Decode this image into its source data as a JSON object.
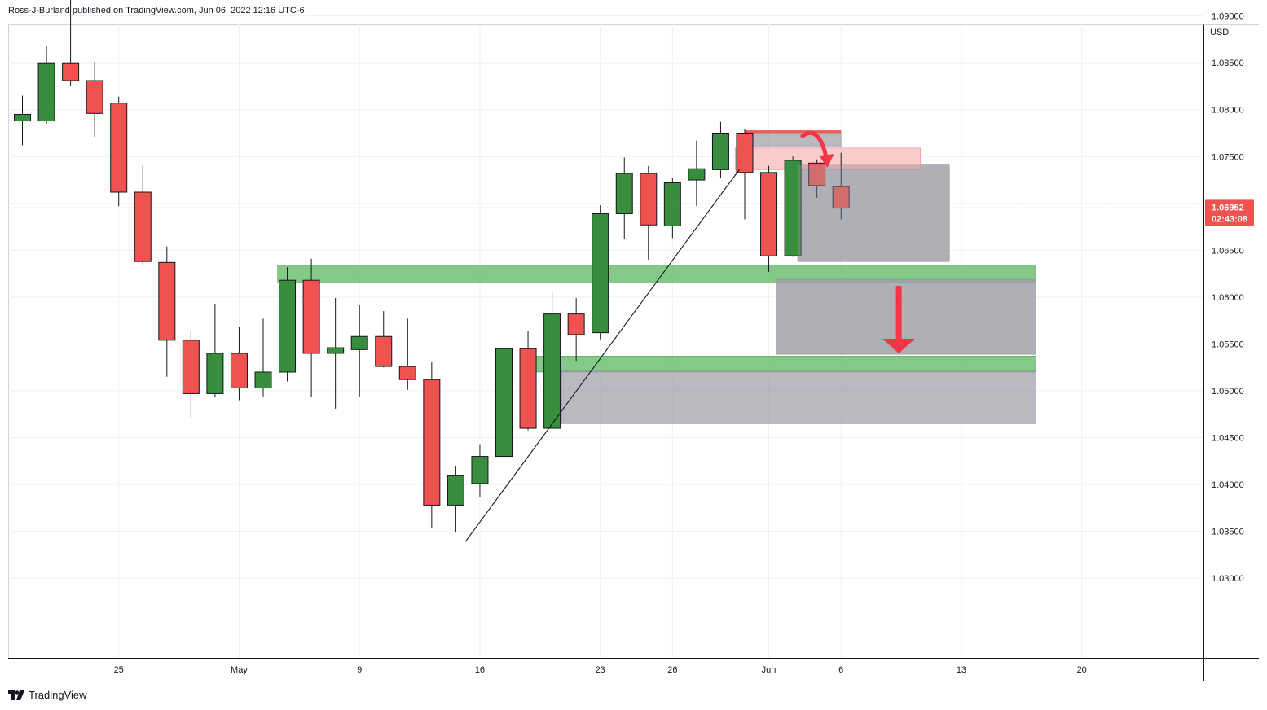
{
  "header": {
    "text": "Ross-J-Burland published on TradingView.com, Jun 06, 2022 12:16 UTC-6"
  },
  "currency": "USD",
  "brand": "TradingView",
  "colors": {
    "up": "#388e3c",
    "down": "#ef5350",
    "grid": "#eef0f3",
    "zone_green": "#66bb6a",
    "zone_gray": "#9e9ea6",
    "zone_pink": "#f8b6b6",
    "arrow": "#f23645",
    "last_price_badge": "#ef5350"
  },
  "icons": {
    "curved_arrow": "curved-arrow-icon",
    "down_arrow": "arrow-down-icon",
    "brand": "tradingview-logo-icon"
  },
  "last_price": {
    "value": "1.06952",
    "countdown": "02:43:08"
  },
  "chart_data": {
    "type": "candlestick",
    "title": "",
    "ylim": [
      1.0215,
      1.0891
    ],
    "y_ticks": [
      "1.09000",
      "1.08500",
      "1.08000",
      "1.07500",
      "1.07000",
      "1.06500",
      "1.06000",
      "1.05500",
      "1.05000",
      "1.04500",
      "1.04000",
      "1.03500",
      "1.03000"
    ],
    "x_labels": [
      {
        "label": "25",
        "bar": 4
      },
      {
        "label": "May",
        "bar": 9
      },
      {
        "label": "9",
        "bar": 14
      },
      {
        "label": "16",
        "bar": 19
      },
      {
        "label": "23",
        "bar": 24
      },
      {
        "label": "26",
        "bar": 27
      },
      {
        "label": "Jun",
        "bar": 31
      },
      {
        "label": "6",
        "bar": 34
      },
      {
        "label": "13",
        "bar": 39
      },
      {
        "label": "20",
        "bar": 44
      }
    ],
    "candles": [
      {
        "o": 1.0788,
        "h": 1.0815,
        "l": 1.0762,
        "c": 1.0795
      },
      {
        "o": 1.0788,
        "h": 1.0868,
        "l": 1.0785,
        "c": 1.085
      },
      {
        "o": 1.085,
        "h": 1.0936,
        "l": 1.0825,
        "c": 1.0831
      },
      {
        "o": 1.0831,
        "h": 1.0851,
        "l": 1.0771,
        "c": 1.0796
      },
      {
        "o": 1.0807,
        "h": 1.0814,
        "l": 1.0697,
        "c": 1.0712
      },
      {
        "o": 1.0712,
        "h": 1.074,
        "l": 1.0635,
        "c": 1.0638
      },
      {
        "o": 1.0637,
        "h": 1.0654,
        "l": 1.0515,
        "c": 1.0554
      },
      {
        "o": 1.0554,
        "h": 1.0564,
        "l": 1.0471,
        "c": 1.0497
      },
      {
        "o": 1.0497,
        "h": 1.0593,
        "l": 1.0493,
        "c": 1.054
      },
      {
        "o": 1.054,
        "h": 1.0568,
        "l": 1.049,
        "c": 1.0503
      },
      {
        "o": 1.0503,
        "h": 1.0577,
        "l": 1.0494,
        "c": 1.052
      },
      {
        "o": 1.052,
        "h": 1.0632,
        "l": 1.051,
        "c": 1.0618
      },
      {
        "o": 1.0618,
        "h": 1.0641,
        "l": 1.0493,
        "c": 1.054
      },
      {
        "o": 1.054,
        "h": 1.0599,
        "l": 1.0481,
        "c": 1.0546
      },
      {
        "o": 1.0544,
        "h": 1.0592,
        "l": 1.0494,
        "c": 1.0558
      },
      {
        "o": 1.0558,
        "h": 1.0585,
        "l": 1.0525,
        "c": 1.0526
      },
      {
        "o": 1.0526,
        "h": 1.0577,
        "l": 1.0501,
        "c": 1.0512
      },
      {
        "o": 1.0512,
        "h": 1.0531,
        "l": 1.0353,
        "c": 1.0378
      },
      {
        "o": 1.0378,
        "h": 1.042,
        "l": 1.0349,
        "c": 1.041
      },
      {
        "o": 1.0401,
        "h": 1.0443,
        "l": 1.0387,
        "c": 1.043
      },
      {
        "o": 1.043,
        "h": 1.0556,
        "l": 1.043,
        "c": 1.0545
      },
      {
        "o": 1.0545,
        "h": 1.0564,
        "l": 1.0458,
        "c": 1.046
      },
      {
        "o": 1.046,
        "h": 1.0607,
        "l": 1.0459,
        "c": 1.0582
      },
      {
        "o": 1.0582,
        "h": 1.0599,
        "l": 1.0532,
        "c": 1.056
      },
      {
        "o": 1.0562,
        "h": 1.0698,
        "l": 1.0555,
        "c": 1.0689
      },
      {
        "o": 1.0689,
        "h": 1.0749,
        "l": 1.0662,
        "c": 1.0732
      },
      {
        "o": 1.0732,
        "h": 1.074,
        "l": 1.064,
        "c": 1.0677
      },
      {
        "o": 1.0676,
        "h": 1.0727,
        "l": 1.0663,
        "c": 1.0722
      },
      {
        "o": 1.0725,
        "h": 1.0767,
        "l": 1.0697,
        "c": 1.0737
      },
      {
        "o": 1.0736,
        "h": 1.0787,
        "l": 1.0727,
        "c": 1.0775
      },
      {
        "o": 1.0775,
        "h": 1.0779,
        "l": 1.0683,
        "c": 1.0733
      },
      {
        "o": 1.0733,
        "h": 1.074,
        "l": 1.0627,
        "c": 1.0644
      },
      {
        "o": 1.0644,
        "h": 1.075,
        "l": 1.0643,
        "c": 1.0746
      },
      {
        "o": 1.0743,
        "h": 1.0747,
        "l": 1.0706,
        "c": 1.0719
      },
      {
        "o": 1.0718,
        "h": 1.0754,
        "l": 1.0683,
        "c": 1.0695
      }
    ],
    "trendlines": [
      {
        "from": {
          "bar": 18.4,
          "price": 1.0339
        },
        "to": {
          "bar": 29.8,
          "price": 1.0737
        }
      }
    ],
    "zones": [
      {
        "kind": "green",
        "bar_from": 10.6,
        "bar_to": 42.1,
        "price_top": 1.0634,
        "price_bottom": 1.0615
      },
      {
        "kind": "green",
        "bar_from": 21.3,
        "bar_to": 42.1,
        "price_top": 1.0537,
        "price_bottom": 1.052
      },
      {
        "kind": "gray",
        "bar_from": 31.3,
        "bar_to": 42.1,
        "price_top": 1.0619,
        "price_bottom": 1.0539
      },
      {
        "kind": "gray",
        "bar_from": 22.4,
        "bar_to": 42.1,
        "price_top": 1.0521,
        "price_bottom": 1.0465
      },
      {
        "kind": "gray",
        "bar_from": 32.2,
        "bar_to": 38.5,
        "price_top": 1.0741,
        "price_bottom": 1.0638
      },
      {
        "kind": "pink",
        "bar_from": 29.6,
        "bar_to": 37.3,
        "price_top": 1.0759,
        "price_bottom": 1.0736
      },
      {
        "kind": "gray",
        "bar_from": 30.0,
        "bar_to": 34.0,
        "price_top": 1.0777,
        "price_bottom": 1.076
      },
      {
        "kind": "red_line",
        "bar_from": 30.0,
        "bar_to": 34.0,
        "price_top": 1.0778,
        "price_bottom": 1.0775
      }
    ],
    "annotations": [
      {
        "kind": "curved-arrow",
        "bar_from": 32.4,
        "bar_to": 33.4,
        "price_from": 1.0772,
        "price_to": 1.0744
      },
      {
        "kind": "down-arrow",
        "bar": 36.4,
        "price_from": 1.0612,
        "price_to": 1.054
      }
    ],
    "last_price_line": 1.06952
  }
}
